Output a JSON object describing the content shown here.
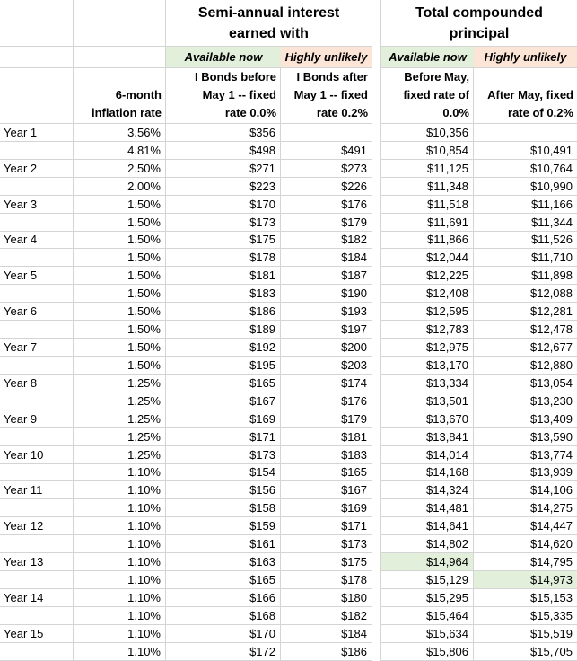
{
  "sheet": {
    "titles": {
      "interest": "Semi-annual interest\nearned with",
      "principal": "Total compounded\nprincipal"
    },
    "tags": {
      "available": "Available now",
      "unlikely": "Highly unlikely"
    },
    "col_headers": {
      "inflation": "6-month\ninflation rate",
      "interest_before": "I Bonds before\nMay 1 -- fixed\nrate 0.0%",
      "interest_after": "I Bonds after\nMay 1 -- fixed\nrate 0.2%",
      "principal_before": "Before May,\nfixed rate of\n0.0%",
      "principal_after": "After May, fixed\nrate of 0.2%"
    },
    "colors": {
      "available_bg": "#e2efda",
      "unlikely_bg": "#fce4d6",
      "highlight_bg": "#e2efda",
      "gridline": "#d4d4d4",
      "text": "#000000"
    },
    "rows": [
      {
        "year": "Year 1",
        "rate": "3.56%",
        "interest_before": "$356",
        "interest_after": "",
        "principal_before": "$10,356",
        "principal_after": ""
      },
      {
        "year": "",
        "rate": "4.81%",
        "interest_before": "$498",
        "interest_after": "$491",
        "principal_before": "$10,854",
        "principal_after": "$10,491"
      },
      {
        "year": "Year 2",
        "rate": "2.50%",
        "interest_before": "$271",
        "interest_after": "$273",
        "principal_before": "$11,125",
        "principal_after": "$10,764"
      },
      {
        "year": "",
        "rate": "2.00%",
        "interest_before": "$223",
        "interest_after": "$226",
        "principal_before": "$11,348",
        "principal_after": "$10,990"
      },
      {
        "year": "Year 3",
        "rate": "1.50%",
        "interest_before": "$170",
        "interest_after": "$176",
        "principal_before": "$11,518",
        "principal_after": "$11,166"
      },
      {
        "year": "",
        "rate": "1.50%",
        "interest_before": "$173",
        "interest_after": "$179",
        "principal_before": "$11,691",
        "principal_after": "$11,344"
      },
      {
        "year": "Year 4",
        "rate": "1.50%",
        "interest_before": "$175",
        "interest_after": "$182",
        "principal_before": "$11,866",
        "principal_after": "$11,526"
      },
      {
        "year": "",
        "rate": "1.50%",
        "interest_before": "$178",
        "interest_after": "$184",
        "principal_before": "$12,044",
        "principal_after": "$11,710"
      },
      {
        "year": "Year 5",
        "rate": "1.50%",
        "interest_before": "$181",
        "interest_after": "$187",
        "principal_before": "$12,225",
        "principal_after": "$11,898"
      },
      {
        "year": "",
        "rate": "1.50%",
        "interest_before": "$183",
        "interest_after": "$190",
        "principal_before": "$12,408",
        "principal_after": "$12,088"
      },
      {
        "year": "Year 6",
        "rate": "1.50%",
        "interest_before": "$186",
        "interest_after": "$193",
        "principal_before": "$12,595",
        "principal_after": "$12,281"
      },
      {
        "year": "",
        "rate": "1.50%",
        "interest_before": "$189",
        "interest_after": "$197",
        "principal_before": "$12,783",
        "principal_after": "$12,478"
      },
      {
        "year": "Year 7",
        "rate": "1.50%",
        "interest_before": "$192",
        "interest_after": "$200",
        "principal_before": "$12,975",
        "principal_after": "$12,677"
      },
      {
        "year": "",
        "rate": "1.50%",
        "interest_before": "$195",
        "interest_after": "$203",
        "principal_before": "$13,170",
        "principal_after": "$12,880"
      },
      {
        "year": "Year 8",
        "rate": "1.25%",
        "interest_before": "$165",
        "interest_after": "$174",
        "principal_before": "$13,334",
        "principal_after": "$13,054"
      },
      {
        "year": "",
        "rate": "1.25%",
        "interest_before": "$167",
        "interest_after": "$176",
        "principal_before": "$13,501",
        "principal_after": "$13,230"
      },
      {
        "year": "Year 9",
        "rate": "1.25%",
        "interest_before": "$169",
        "interest_after": "$179",
        "principal_before": "$13,670",
        "principal_after": "$13,409"
      },
      {
        "year": "",
        "rate": "1.25%",
        "interest_before": "$171",
        "interest_after": "$181",
        "principal_before": "$13,841",
        "principal_after": "$13,590"
      },
      {
        "year": "Year 10",
        "rate": "1.25%",
        "interest_before": "$173",
        "interest_after": "$183",
        "principal_before": "$14,014",
        "principal_after": "$13,774"
      },
      {
        "year": "",
        "rate": "1.10%",
        "interest_before": "$154",
        "interest_after": "$165",
        "principal_before": "$14,168",
        "principal_after": "$13,939"
      },
      {
        "year": "Year 11",
        "rate": "1.10%",
        "interest_before": "$156",
        "interest_after": "$167",
        "principal_before": "$14,324",
        "principal_after": "$14,106"
      },
      {
        "year": "",
        "rate": "1.10%",
        "interest_before": "$158",
        "interest_after": "$169",
        "principal_before": "$14,481",
        "principal_after": "$14,275"
      },
      {
        "year": "Year 12",
        "rate": "1.10%",
        "interest_before": "$159",
        "interest_after": "$171",
        "principal_before": "$14,641",
        "principal_after": "$14,447"
      },
      {
        "year": "",
        "rate": "1.10%",
        "interest_before": "$161",
        "interest_after": "$173",
        "principal_before": "$14,802",
        "principal_after": "$14,620"
      },
      {
        "year": "Year 13",
        "rate": "1.10%",
        "interest_before": "$163",
        "interest_after": "$175",
        "principal_before": "$14,964",
        "principal_after": "$14,795"
      },
      {
        "year": "",
        "rate": "1.10%",
        "interest_before": "$165",
        "interest_after": "$178",
        "principal_before": "$15,129",
        "principal_after": "$14,973"
      },
      {
        "year": "Year 14",
        "rate": "1.10%",
        "interest_before": "$166",
        "interest_after": "$180",
        "principal_before": "$15,295",
        "principal_after": "$15,153"
      },
      {
        "year": "",
        "rate": "1.10%",
        "interest_before": "$168",
        "interest_after": "$182",
        "principal_before": "$15,464",
        "principal_after": "$15,335"
      },
      {
        "year": "Year 15",
        "rate": "1.10%",
        "interest_before": "$170",
        "interest_after": "$184",
        "principal_before": "$15,634",
        "principal_after": "$15,519"
      },
      {
        "year": "",
        "rate": "1.10%",
        "interest_before": "$172",
        "interest_after": "$186",
        "principal_before": "$15,806",
        "principal_after": "$15,705"
      }
    ],
    "highlights": [
      {
        "row": 24,
        "field": "principal_before"
      },
      {
        "row": 25,
        "field": "principal_after"
      }
    ]
  }
}
